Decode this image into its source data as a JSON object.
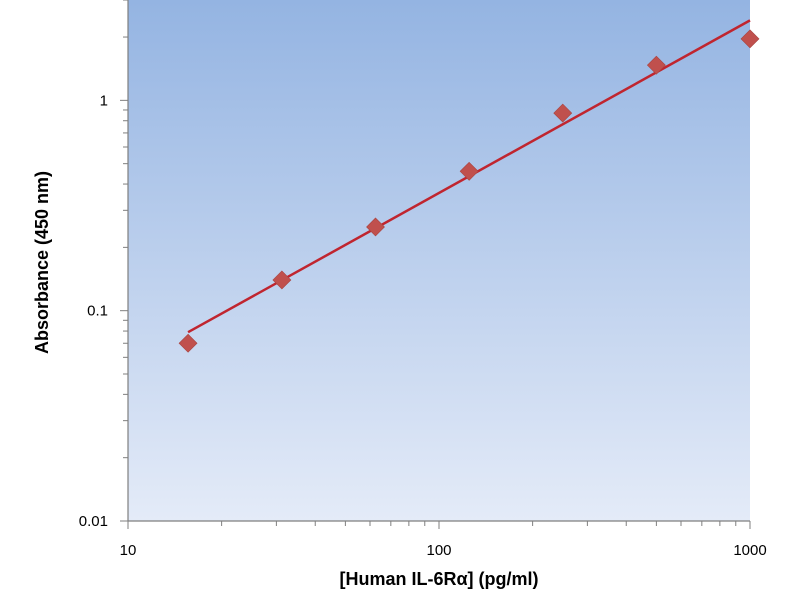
{
  "chart_data": {
    "type": "scatter",
    "title": "",
    "xlabel": "[Human IL-6Rα] (pg/ml)",
    "ylabel": "Absorbance (450 nm)",
    "xscale": "log",
    "yscale": "log",
    "xlim": [
      10,
      1000
    ],
    "ylim": [
      0.01,
      3
    ],
    "grid": false,
    "legend": "none",
    "xticks": [
      {
        "value": 10,
        "label": "10"
      },
      {
        "value": 100,
        "label": "100"
      },
      {
        "value": 1000,
        "label": "1000"
      }
    ],
    "yticks": [
      {
        "value": 0.01,
        "label": "0.01"
      },
      {
        "value": 0.1,
        "label": "0.1"
      },
      {
        "value": 1,
        "label": "1"
      }
    ],
    "series": [
      {
        "x": [
          15.6,
          31.25,
          62.5,
          125,
          250,
          500,
          1000
        ],
        "y": [
          0.07,
          0.14,
          0.25,
          0.46,
          0.87,
          1.47,
          1.96
        ],
        "marker": "diamond",
        "color": "#c0504d"
      }
    ],
    "fit_line": {
      "x": [
        15.6,
        1000
      ],
      "y": [
        0.079,
        2.4
      ],
      "color": "#c0252f"
    },
    "colors": {
      "plot_bg_top": "#94b4e2",
      "plot_bg_bottom": "#e4ebf8",
      "axis": "#7f7f7f"
    }
  }
}
